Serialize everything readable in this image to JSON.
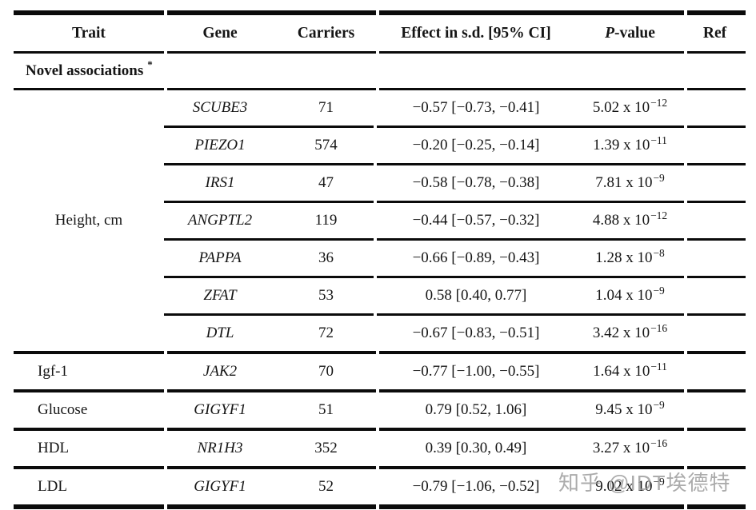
{
  "watermark": {
    "text": "知乎 @IDT埃德特",
    "color": "#969696"
  },
  "table": {
    "columns": {
      "trait": "Trait",
      "gene": "Gene",
      "carriers": "Carriers",
      "effect": "Effect in s.d. [95% CI]",
      "pvalue_italic": "P",
      "pvalue_rest": "-value",
      "ref": "Ref"
    },
    "section": {
      "label": "Novel associations",
      "superscript": "*"
    },
    "groups": [
      {
        "trait": "Height, cm",
        "rows": [
          {
            "gene": "SCUBE3",
            "carriers": "71",
            "effect": "−0.57 [−0.73, −0.41]",
            "p_mantissa": "5.02 x 10",
            "p_exponent": "−12",
            "ref": ""
          },
          {
            "gene": "PIEZO1",
            "carriers": "574",
            "effect": "−0.20 [−0.25, −0.14]",
            "p_mantissa": "1.39 x 10",
            "p_exponent": "−11",
            "ref": ""
          },
          {
            "gene": "IRS1",
            "carriers": "47",
            "effect": "−0.58 [−0.78, −0.38]",
            "p_mantissa": "7.81 x 10",
            "p_exponent": "−9",
            "ref": ""
          },
          {
            "gene": "ANGPTL2",
            "carriers": "119",
            "effect": "−0.44 [−0.57, −0.32]",
            "p_mantissa": "4.88 x 10",
            "p_exponent": "−12",
            "ref": ""
          },
          {
            "gene": "PAPPA",
            "carriers": "36",
            "effect": "−0.66 [−0.89, −0.43]",
            "p_mantissa": "1.28 x 10",
            "p_exponent": "−8",
            "ref": ""
          },
          {
            "gene": "ZFAT",
            "carriers": "53",
            "effect": "0.58 [0.40, 0.77]",
            "p_mantissa": "1.04 x 10",
            "p_exponent": "−9",
            "ref": ""
          },
          {
            "gene": "DTL",
            "carriers": "72",
            "effect": "−0.67 [−0.83, −0.51]",
            "p_mantissa": "3.42 x 10",
            "p_exponent": "−16",
            "ref": ""
          }
        ]
      },
      {
        "trait": "Igf-1",
        "rows": [
          {
            "gene": "JAK2",
            "carriers": "70",
            "effect": "−0.77 [−1.00, −0.55]",
            "p_mantissa": "1.64 x 10",
            "p_exponent": "−11",
            "ref": ""
          }
        ]
      },
      {
        "trait": "Glucose",
        "rows": [
          {
            "gene": "GIGYF1",
            "carriers": "51",
            "effect": "0.79 [0.52, 1.06]",
            "p_mantissa": "9.45 x 10",
            "p_exponent": "−9",
            "ref": ""
          }
        ]
      },
      {
        "trait": "HDL",
        "rows": [
          {
            "gene": "NR1H3",
            "carriers": "352",
            "effect": "0.39 [0.30, 0.49]",
            "p_mantissa": "3.27 x 10",
            "p_exponent": "−16",
            "ref": ""
          }
        ]
      },
      {
        "trait": "LDL",
        "rows": [
          {
            "gene": "GIGYF1",
            "carriers": "52",
            "effect": "−0.79 [−1.06, −0.52]",
            "p_mantissa": "9.02 x 10",
            "p_exponent": "−9",
            "ref": ""
          }
        ]
      }
    ]
  }
}
